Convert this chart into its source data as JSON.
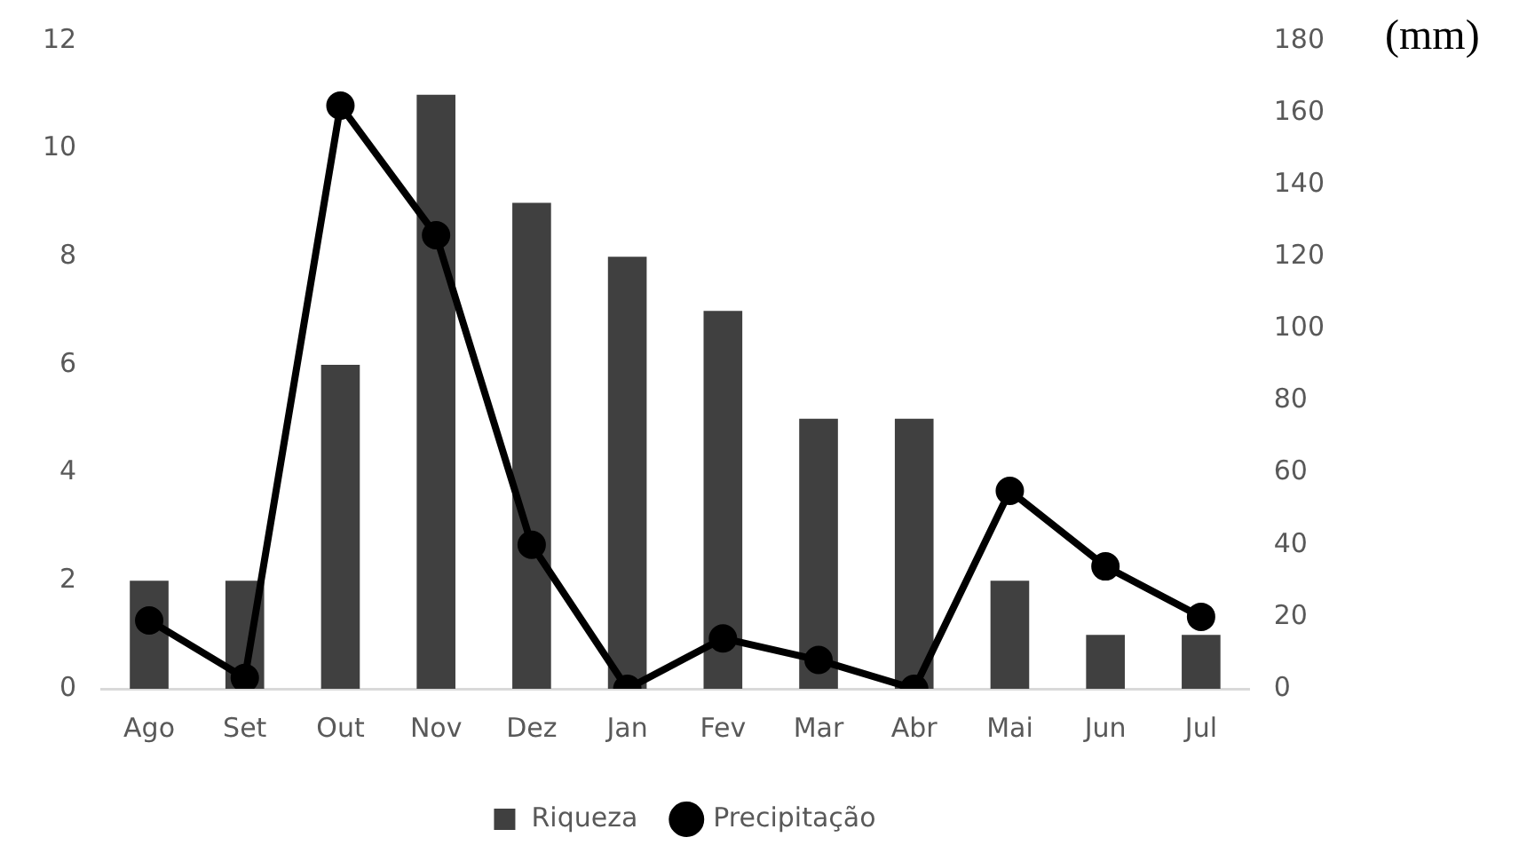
{
  "chart_data": {
    "type": "bar",
    "y2label": "(mm)",
    "categories": [
      "Ago",
      "Set",
      "Out",
      "Nov",
      "Dez",
      "Jan",
      "Fev",
      "Mar",
      "Abr",
      "Mai",
      "Jun",
      "Jul"
    ],
    "series": [
      {
        "name": "Riqueza",
        "color": "#404040",
        "values": [
          2,
          2,
          6,
          11,
          9,
          8,
          7,
          5,
          5,
          2,
          1,
          1
        ]
      },
      {
        "name": "Precipitação",
        "type": "line",
        "axis": "y2",
        "color": "#000000",
        "marker": "circle",
        "values": [
          19,
          3,
          162,
          126,
          40,
          0,
          14,
          8,
          0,
          55,
          34,
          20
        ]
      }
    ],
    "ylim": [
      0,
      12
    ],
    "yticks": [
      0,
      2,
      4,
      6,
      8,
      10,
      12
    ],
    "y2lim": [
      0,
      180
    ],
    "y2ticks": [
      0,
      20,
      40,
      60,
      80,
      100,
      120,
      140,
      160,
      180
    ],
    "grid": false,
    "legend": "bottom"
  }
}
